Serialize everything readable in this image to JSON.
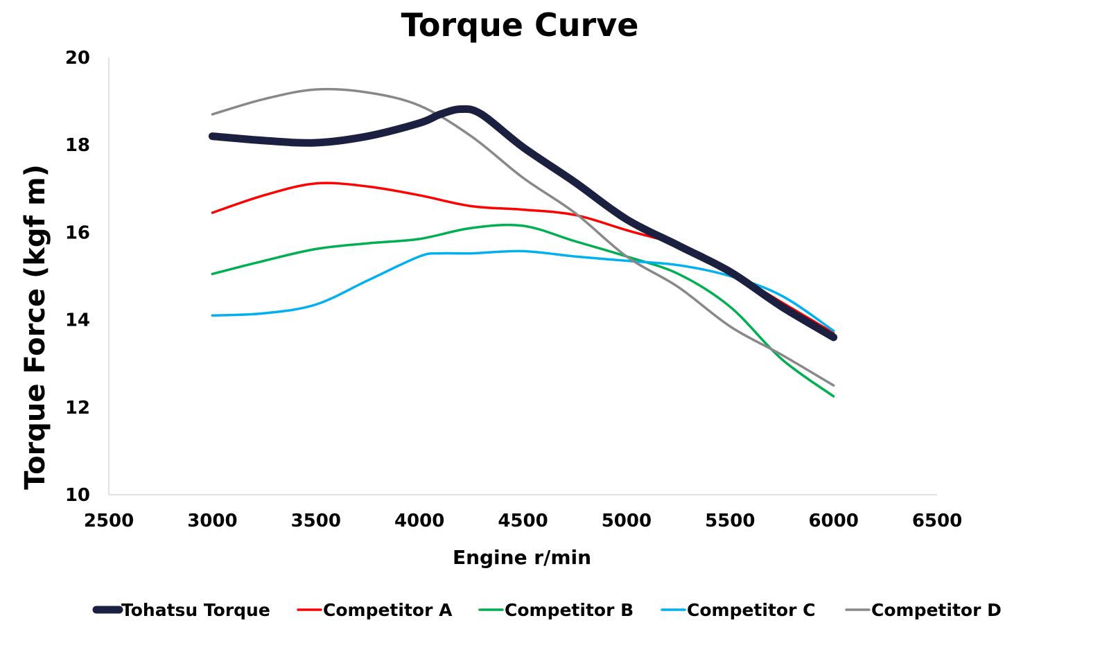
{
  "chart_data": {
    "type": "line",
    "title": "Torque Curve",
    "xlabel": "Engine r/min",
    "ylabel": "Torque Force (kgf m)",
    "xlim": [
      2500,
      6500
    ],
    "ylim": [
      10,
      20
    ],
    "xticks": [
      "2500",
      "3000",
      "3500",
      "4000",
      "4500",
      "5000",
      "5500",
      "6000",
      "6500"
    ],
    "yticks": [
      "10",
      "12",
      "14",
      "16",
      "18",
      "20"
    ],
    "grid": false,
    "legend_position": "bottom",
    "series": [
      {
        "name": "Tohatsu Torque",
        "color": "#1b2040",
        "x": [
          3000,
          3250,
          3500,
          3750,
          4000,
          4100,
          4200,
          4300,
          4500,
          4750,
          5000,
          5250,
          5500,
          5750,
          6000
        ],
        "y": [
          18.2,
          18.1,
          18.05,
          18.2,
          18.5,
          18.7,
          18.82,
          18.7,
          17.95,
          17.15,
          16.3,
          15.7,
          15.1,
          14.3,
          13.6
        ]
      },
      {
        "name": "Competitor A",
        "color": "#ff0000",
        "x": [
          3000,
          3250,
          3500,
          3750,
          4000,
          4250,
          4500,
          4750,
          5000,
          5250,
          5500,
          5750,
          6000
        ],
        "y": [
          16.45,
          16.85,
          17.12,
          17.05,
          16.85,
          16.6,
          16.52,
          16.4,
          16.05,
          15.7,
          15.1,
          14.4,
          13.7
        ]
      },
      {
        "name": "Competitor B",
        "color": "#00b050",
        "x": [
          3000,
          3250,
          3500,
          3750,
          4000,
          4250,
          4500,
          4750,
          5000,
          5250,
          5500,
          5750,
          6000
        ],
        "y": [
          15.05,
          15.35,
          15.62,
          15.75,
          15.85,
          16.1,
          16.15,
          15.8,
          15.45,
          15.05,
          14.3,
          13.1,
          12.25
        ]
      },
      {
        "name": "Competitor C",
        "color": "#00b0f0",
        "x": [
          3000,
          3250,
          3500,
          3750,
          4000,
          4100,
          4250,
          4500,
          4750,
          5000,
          5250,
          5500,
          5750,
          6000
        ],
        "y": [
          14.1,
          14.15,
          14.35,
          14.9,
          15.45,
          15.52,
          15.52,
          15.57,
          15.45,
          15.35,
          15.25,
          15.0,
          14.55,
          13.75
        ]
      },
      {
        "name": "Competitor D",
        "color": "#888888",
        "x": [
          3000,
          3250,
          3500,
          3750,
          4000,
          4250,
          4500,
          4750,
          5000,
          5250,
          5500,
          5750,
          6000
        ],
        "y": [
          18.7,
          19.05,
          19.27,
          19.2,
          18.9,
          18.2,
          17.25,
          16.45,
          15.45,
          14.75,
          13.85,
          13.2,
          12.5
        ]
      }
    ]
  }
}
